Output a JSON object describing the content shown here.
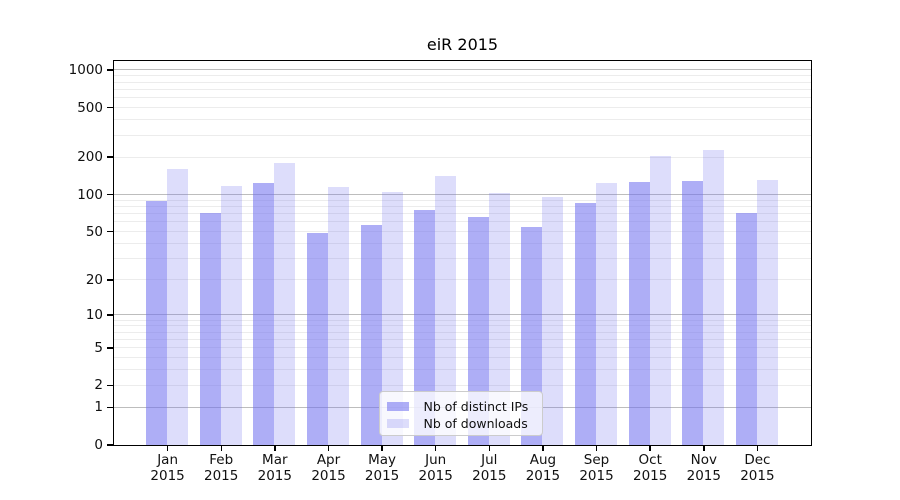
{
  "figure": {
    "title": "eiR 2015"
  },
  "chart_data": {
    "type": "bar",
    "title": "eiR 2015",
    "categories": [
      "Jan",
      "Feb",
      "Mar",
      "Apr",
      "May",
      "Jun",
      "Jul",
      "Aug",
      "Sep",
      "Oct",
      "Nov",
      "Dec"
    ],
    "x_sublabel": "2015",
    "series": [
      {
        "name": "Nb of distinct IPs",
        "color": "rgba(112,112,240,0.57)",
        "values": [
          88,
          70,
          122,
          48,
          56,
          74,
          65,
          54,
          84,
          124,
          128,
          70
        ]
      },
      {
        "name": "Nb of downloads",
        "color": "rgba(112,112,240,0.24)",
        "values": [
          158,
          117,
          177,
          113,
          103,
          141,
          101,
          94,
          122,
          204,
          228,
          129
        ]
      }
    ],
    "yticks": [
      0,
      1,
      2,
      5,
      10,
      20,
      50,
      100,
      200,
      500,
      1000
    ],
    "ylim": [
      0,
      1200
    ],
    "yscale": "log10(value+1)",
    "xlabel": "",
    "ylabel": "",
    "grid": {
      "major_at": [
        1,
        10,
        100,
        1000
      ],
      "minor_at": [
        2,
        3,
        4,
        5,
        6,
        7,
        8,
        9,
        20,
        30,
        40,
        50,
        60,
        70,
        80,
        90,
        200,
        300,
        400,
        500,
        600,
        700,
        800,
        900
      ],
      "major_color": "#bdbdbd",
      "minor_color": "#ececec"
    },
    "legend": {
      "position": "lower center"
    },
    "colors": {
      "spine": "#000000",
      "background": "#ffffff"
    }
  }
}
